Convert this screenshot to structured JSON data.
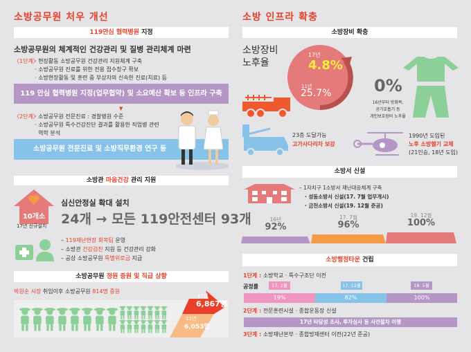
{
  "left": {
    "title": "소방공무원 처우 개선",
    "hospital": {
      "header_red": "119안심 협력병원",
      "header_rest": " 지정",
      "heading": "소방공무원의 체계적인 건강관리 및 질병 관리체계 마련",
      "stage1_label": "〈1단계〉",
      "stage1_items": [
        "· 현장활동 소방공무원 건강관리 지원체계 구축",
        "· 소방공무원 진료를 위한 전용 접수창구 확보",
        "· 소방현장활동 및 훈련 중 부상자의 신속한 진료(치료) 등"
      ],
      "stage1_bar": "119 안심 협력병원 지정(업무협약) 및 소요예산 확보 등 인프라 구축",
      "stage2_label": "〈2단계〉",
      "stage2_items": [
        "· 소방공무원 전문진료 : 경찰병원 수준",
        "· 소방공무원 특수건강진단 결과를 활용한 직업병 관련",
        "  역학 분석"
      ],
      "stage2_bar": "소방공무원 전문진료 및 소방직무환경 연구 등"
    },
    "mental": {
      "header_pre": "소방관 ",
      "header_red": "마음건강",
      "header_post": " 관리 지원",
      "house_label": "10개소",
      "house_caption": "17년 신규설치",
      "subtitle": "심신안정실 확대 설치",
      "big": "24개 → 모든 119안전센터 93개",
      "items": [
        {
          "pre": "– ",
          "red": "119재난현장 회복팀",
          "post": " 운영"
        },
        {
          "pre": "– 소방관 ",
          "red": "건강검진",
          "post": " 지원 등 건강관리 강화"
        },
        {
          "pre": "– 공상 소방공무원 ",
          "red": "특별위로금",
          "post": " 지급"
        }
      ]
    },
    "staff": {
      "header_pre": "소방공무원 ",
      "header_red": "정원 증원 및 직급 상향",
      "line_red1": "박원순 시장",
      "line_mid": " 취임이후 소방공무원 ",
      "line_red2": "814명 증원",
      "y2017_label": "17년",
      "y2017_value": "6,867명",
      "y2011_label": "11년",
      "y2011_value": "6,053명"
    }
  },
  "right": {
    "title": "소방 인프라 확충",
    "equipment": {
      "header": "소방장비 확충",
      "label_line1": "소방장비",
      "label_line2": "노후율",
      "y17": "17년",
      "v17": "4.8%",
      "y11": "11년",
      "v11": "25.7%",
      "zero": "0%",
      "zero_desc": [
        "16년부터 방화복,",
        "공기호흡기 등",
        "개인보호장비 노후율"
      ],
      "ladder_line1": "23층 도달가능",
      "ladder_line2": "고가사다리차 보강",
      "heli_line1": "1990년 도입된",
      "heli_line2": "노후 소방헬기 교체",
      "heli_line3": "(21인승, 18년 도입)"
    },
    "station": {
      "header": "소방서 신설",
      "lines": [
        "– 1자치구 1소방서 재난대응체계 구축",
        "· 성동소방서 신설(17. 7월 업무개시)",
        "· 금천소방서 신설(19. 12월 준공)"
      ],
      "steps": [
        {
          "label": "16년",
          "value": "92%",
          "color": "#b597c6"
        },
        {
          "label": "17. 7월",
          "value": "96%",
          "color": "#f59a45"
        },
        {
          "label": "19. 12월",
          "value": "100%",
          "color": "#e47a7a"
        }
      ]
    },
    "town": {
      "header_red": "소방행정타운",
      "header_post": " 건립",
      "stage1_label": "1단계 :",
      "stage1_text": " 소방학교 · 특수구조단 이전",
      "progress_label": "공정률",
      "progress": [
        {
          "date": "17. 2월",
          "value": "19%",
          "color": "#ee96c0"
        },
        {
          "date": "17. 12월",
          "value": "82%",
          "color": "#87c2e8"
        },
        {
          "date": "18. 5월",
          "value": "100%",
          "color": "#b597c6"
        }
      ],
      "stage2_label": "2단계 :",
      "stage2_text": " 전문훈련시설 · 종합운동장 신설",
      "stage2_bar": "17년 타당성 조사, 투자심사 등 사전절차 이행",
      "stage3_label": "3단계 :",
      "stage3_text": " 소방재난본부 · 종합방재센터 이전(22년 준공)"
    }
  }
}
